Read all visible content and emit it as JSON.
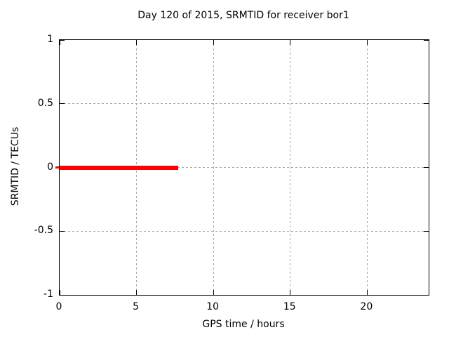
{
  "chart_data": {
    "type": "line",
    "title": "Day 120 of 2015, SRMTID for receiver bor1",
    "xlabel": "GPS time / hours",
    "ylabel": "SRMTID / TECUs",
    "xlim": [
      0,
      24
    ],
    "ylim": [
      -1,
      1
    ],
    "x_ticks": [
      0,
      5,
      10,
      15,
      20
    ],
    "y_ticks": [
      -1,
      -0.5,
      0,
      0.5,
      1
    ],
    "x_tick_labels": [
      "0",
      "5",
      "10",
      "15",
      "20"
    ],
    "y_tick_labels": [
      "-1",
      "-0.5",
      "0",
      "0.5",
      "1"
    ],
    "grid": true,
    "legend": "none",
    "series": [
      {
        "name": "SRMTID",
        "color": "#ff0000",
        "line_width": 6,
        "x": [
          0,
          7.7
        ],
        "y": [
          0,
          0
        ]
      }
    ],
    "colors": {
      "background": "#ffffff",
      "border": "#000000",
      "grid": "#a6a6a6",
      "text": "#000000",
      "accent": "#ff0000"
    }
  }
}
